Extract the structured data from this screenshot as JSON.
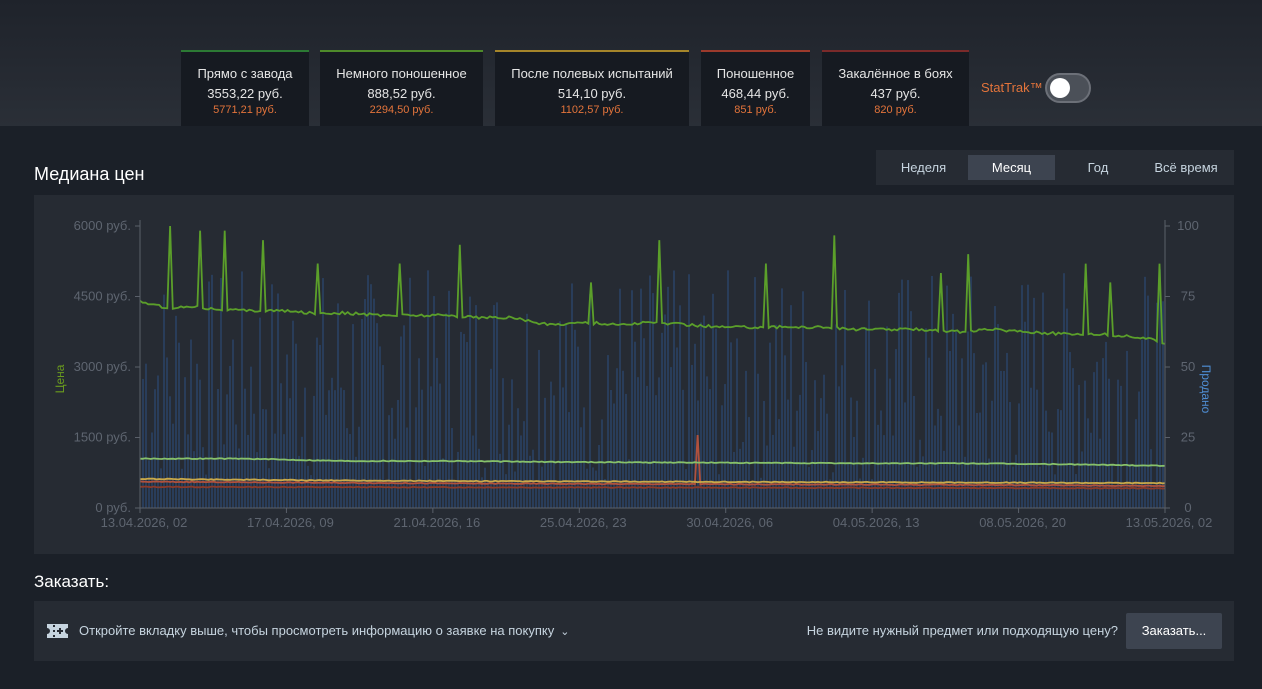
{
  "wear_tabs": [
    {
      "name": "Прямо с завода",
      "price": "3553,22 руб.",
      "stattrak": "5771,21 руб.",
      "color": "#2c7a34"
    },
    {
      "name": "Немного поношенное",
      "price": "888,52 руб.",
      "stattrak": "2294,50 руб.",
      "color": "#4e8a2a"
    },
    {
      "name": "После полевых испытаний",
      "price": "514,10 руб.",
      "stattrak": "1102,57 руб.",
      "color": "#a5852a"
    },
    {
      "name": "Поношенное",
      "price": "468,44 руб.",
      "stattrak": "851 руб.",
      "color": "#9c3a2c"
    },
    {
      "name": "Закалённое в боях",
      "price": "437 руб.",
      "stattrak": "820 руб.",
      "color": "#7a2a2a"
    }
  ],
  "stattrak": {
    "label": "StatTrak™",
    "enabled": false
  },
  "chart_title": "Медиана цен",
  "ranges": [
    {
      "label": "Неделя",
      "active": false
    },
    {
      "label": "Месяц",
      "active": true
    },
    {
      "label": "Год",
      "active": false
    },
    {
      "label": "Всё время",
      "active": false
    }
  ],
  "chart_data": {
    "type": "line",
    "title": "Медиана цен",
    "xlabel": "",
    "ylabel": "Цена",
    "y2label": "Продано",
    "ylim": [
      0,
      6000
    ],
    "y2lim": [
      0,
      100
    ],
    "yticks": [
      "0 руб.",
      "1500 руб.",
      "3000 руб.",
      "4500 руб.",
      "6000 руб."
    ],
    "y2ticks": [
      "0",
      "25",
      "50",
      "75",
      "100"
    ],
    "xticks": [
      "13.04.2026, 02",
      "17.04.2026, 09",
      "21.04.2026, 16",
      "25.04.2026, 23",
      "30.04.2026, 06",
      "04.05.2026, 13",
      "08.05.2026, 20",
      "13.05.2026, 02"
    ],
    "x_start_day": 0,
    "x_end_day": 30,
    "series": [
      {
        "name": "Прямо с завода",
        "color": "#5b9f2a",
        "points": [
          [
            0,
            4400
          ],
          [
            0.5,
            4300
          ],
          [
            1,
            4250
          ],
          [
            1.5,
            4300
          ],
          [
            2,
            4250
          ],
          [
            3,
            4200
          ],
          [
            4,
            4200
          ],
          [
            5,
            4150
          ],
          [
            6,
            4150
          ],
          [
            7,
            4100
          ],
          [
            8,
            4100
          ],
          [
            9,
            4100
          ],
          [
            10,
            4050
          ],
          [
            11,
            4050
          ],
          [
            11.5,
            3950
          ],
          [
            12,
            3900
          ],
          [
            13,
            3950
          ],
          [
            14,
            3900
          ],
          [
            15,
            3950
          ],
          [
            16,
            3900
          ],
          [
            17,
            3850
          ],
          [
            18,
            3850
          ],
          [
            19,
            3850
          ],
          [
            20,
            3850
          ],
          [
            21,
            3800
          ],
          [
            22,
            3800
          ],
          [
            23,
            3800
          ],
          [
            24,
            3750
          ],
          [
            25,
            3800
          ],
          [
            26,
            3750
          ],
          [
            27,
            3700
          ],
          [
            28,
            3700
          ],
          [
            29,
            3650
          ],
          [
            29.5,
            3600
          ],
          [
            30,
            3500
          ]
        ],
        "spikes": [
          [
            0.9,
            6000
          ],
          [
            1.8,
            5900
          ],
          [
            2.5,
            5900
          ],
          [
            3.6,
            5700
          ],
          [
            5.2,
            5200
          ],
          [
            7.6,
            5200
          ],
          [
            9.4,
            5600
          ],
          [
            13.2,
            4800
          ],
          [
            15.2,
            5700
          ],
          [
            18.3,
            5200
          ],
          [
            20.3,
            5800
          ],
          [
            23.4,
            5000
          ],
          [
            24.2,
            5400
          ],
          [
            27.7,
            5200
          ],
          [
            28.4,
            4800
          ],
          [
            29.8,
            5200
          ]
        ]
      },
      {
        "name": "Немного поношенное",
        "color": "#87c16a",
        "points": [
          [
            0,
            1050
          ],
          [
            3,
            1050
          ],
          [
            6,
            1000
          ],
          [
            9,
            1000
          ],
          [
            12,
            980
          ],
          [
            15,
            970
          ],
          [
            18,
            960
          ],
          [
            21,
            950
          ],
          [
            24,
            950
          ],
          [
            27,
            930
          ],
          [
            30,
            900
          ]
        ]
      },
      {
        "name": "После полевых испытаний",
        "color": "#c9a94a",
        "points": [
          [
            0,
            620
          ],
          [
            5,
            590
          ],
          [
            10,
            570
          ],
          [
            15,
            560
          ],
          [
            20,
            550
          ],
          [
            25,
            540
          ],
          [
            30,
            530
          ]
        ]
      },
      {
        "name": "Поношенное",
        "color": "#b0513d",
        "points": [
          [
            0,
            560
          ],
          [
            5,
            540
          ],
          [
            10,
            520
          ],
          [
            15,
            510
          ],
          [
            20,
            500
          ],
          [
            25,
            490
          ],
          [
            30,
            470
          ]
        ],
        "spikes": [
          [
            16.3,
            1550
          ]
        ]
      },
      {
        "name": "Закалённое в боях",
        "color": "#8a3a2a",
        "points": [
          [
            0,
            450
          ],
          [
            10,
            440
          ],
          [
            20,
            430
          ],
          [
            30,
            420
          ]
        ]
      }
    ],
    "volume": {
      "name": "Продано",
      "color": "#2b4d7a",
      "range": [
        8,
        85
      ]
    }
  },
  "order": {
    "title": "Заказать:",
    "info": "Откройте вкладку выше, чтобы просмотреть информацию о заявке на покупку",
    "question": "Не видите нужный предмет или подходящую цену?",
    "button": "Заказать..."
  }
}
